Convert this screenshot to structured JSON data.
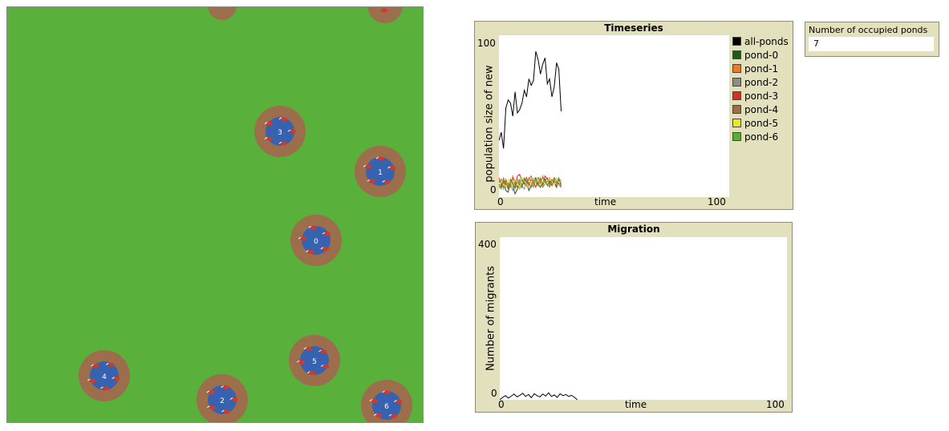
{
  "world": {
    "colors": {
      "grass": "#59b03b",
      "bank": "#9c6e4b",
      "water": "#3762b0",
      "frog": "#d03a2a"
    },
    "ponds": [
      {
        "label": "3"
      },
      {
        "label": "1"
      },
      {
        "label": "0"
      },
      {
        "label": "5"
      },
      {
        "label": "4"
      },
      {
        "label": "2"
      },
      {
        "label": "6"
      }
    ]
  },
  "timeseries": {
    "title": "Timeseries",
    "ylabel": "population size of new",
    "xlabel": "time",
    "y_tick_max": "100",
    "y_tick_min": "0",
    "x_tick_min": "0",
    "x_tick_max": "100",
    "legend": [
      {
        "name": "all-ponds",
        "color": "#000000"
      },
      {
        "name": "pond-0",
        "color": "#1e5a1e"
      },
      {
        "name": "pond-1",
        "color": "#f07820"
      },
      {
        "name": "pond-2",
        "color": "#8c8c8c"
      },
      {
        "name": "pond-3",
        "color": "#d23224"
      },
      {
        "name": "pond-4",
        "color": "#9c6e4b"
      },
      {
        "name": "pond-5",
        "color": "#e6e62a"
      },
      {
        "name": "pond-6",
        "color": "#5aaa3c"
      }
    ]
  },
  "migration": {
    "title": "Migration",
    "ylabel": "Number of migrants",
    "xlabel": "time",
    "y_tick_max": "400",
    "y_tick_min": "0",
    "x_tick_min": "0",
    "x_tick_max": "100"
  },
  "monitor": {
    "label": "Number of occupied ponds",
    "value": "7"
  },
  "chart_data": [
    {
      "type": "line",
      "title": "Timeseries",
      "xlabel": "time",
      "ylabel": "population size of new",
      "xlim": [
        0,
        100
      ],
      "ylim": [
        0,
        100
      ],
      "x": [
        0,
        1,
        2,
        3,
        4,
        5,
        6,
        7,
        8,
        9,
        10,
        11,
        12,
        13,
        14,
        15,
        16,
        17,
        18,
        19,
        20,
        21,
        22,
        23,
        24,
        25,
        26,
        27
      ],
      "series": [
        {
          "name": "all-ponds",
          "values": [
            35,
            40,
            30,
            55,
            60,
            58,
            50,
            65,
            52,
            54,
            58,
            66,
            62,
            73,
            69,
            72,
            90,
            85,
            76,
            82,
            86,
            70,
            73,
            62,
            68,
            83,
            79,
            53
          ]
        },
        {
          "name": "pond-0",
          "values": [
            8,
            6,
            9,
            4,
            3,
            10,
            7,
            2,
            5,
            8,
            6,
            11,
            9,
            4,
            7,
            10,
            12,
            8,
            6,
            9,
            11,
            7,
            10,
            8,
            9,
            6,
            11,
            7
          ]
        },
        {
          "name": "pond-1",
          "values": [
            10,
            8,
            12,
            7,
            9,
            6,
            13,
            9,
            11,
            5,
            8,
            10,
            7,
            12,
            9,
            6,
            11,
            10,
            8,
            13,
            9,
            7,
            12,
            8,
            10,
            9,
            8,
            11
          ]
        },
        {
          "name": "pond-2",
          "values": [
            6,
            9,
            5,
            11,
            7,
            8,
            4,
            10,
            6,
            9,
            7,
            5,
            10,
            8,
            6,
            11,
            9,
            7,
            12,
            6,
            8,
            10,
            7,
            9,
            11,
            8,
            10,
            9
          ]
        },
        {
          "name": "pond-3",
          "values": [
            12,
            7,
            10,
            8,
            5,
            11,
            9,
            6,
            13,
            14,
            10,
            8,
            12,
            7,
            11,
            9,
            6,
            12,
            10,
            8,
            13,
            11,
            9,
            7,
            12,
            10,
            8,
            6
          ]
        },
        {
          "name": "pond-4",
          "values": [
            9,
            11,
            6,
            10,
            8,
            7,
            12,
            8,
            6,
            10,
            11,
            9,
            7,
            11,
            13,
            8,
            10,
            9,
            11,
            7,
            10,
            12,
            8,
            11,
            9,
            7,
            10,
            8
          ]
        },
        {
          "name": "pond-5",
          "values": [
            5,
            10,
            8,
            6,
            11,
            9,
            7,
            11,
            9,
            6,
            12,
            10,
            8,
            6,
            10,
            12,
            9,
            11,
            7,
            10,
            8,
            9,
            11,
            10,
            7,
            12,
            9,
            10
          ]
        },
        {
          "name": "pond-6",
          "values": [
            7,
            5,
            11,
            9,
            6,
            10,
            8,
            5,
            9,
            11,
            7,
            12,
            10,
            9,
            6,
            8,
            11,
            7,
            10,
            12,
            9,
            8,
            6,
            11,
            10,
            9,
            12,
            8
          ]
        }
      ]
    },
    {
      "type": "line",
      "title": "Migration",
      "xlabel": "time",
      "ylabel": "Number of migrants",
      "xlim": [
        0,
        100
      ],
      "ylim": [
        0,
        400
      ],
      "x": [
        0,
        1,
        2,
        3,
        4,
        5,
        6,
        7,
        8,
        9,
        10,
        11,
        12,
        13,
        14,
        15,
        16,
        17,
        18,
        19,
        20,
        21,
        22,
        23,
        24,
        25,
        26,
        27
      ],
      "series": [
        {
          "values": [
            0,
            6,
            10,
            4,
            9,
            14,
            7,
            11,
            16,
            8,
            13,
            5,
            15,
            10,
            7,
            14,
            9,
            17,
            8,
            12,
            6,
            15,
            10,
            13,
            8,
            11,
            6,
            0
          ]
        }
      ]
    }
  ]
}
